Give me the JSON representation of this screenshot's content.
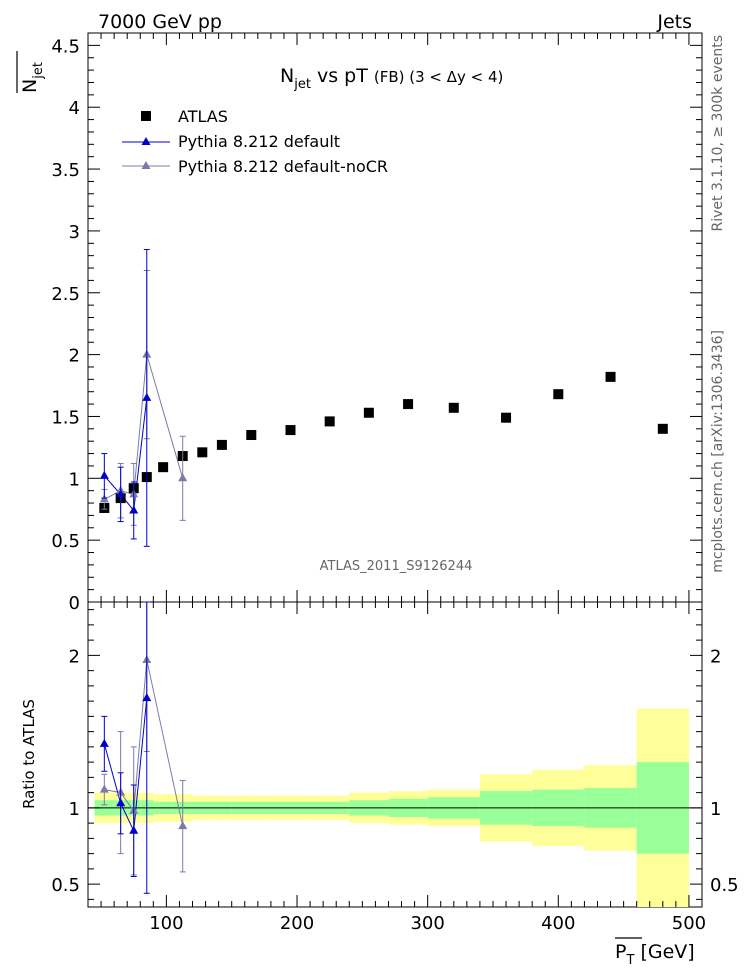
{
  "header": {
    "left": "7000 GeV pp",
    "right": "Jets"
  },
  "side_labels": {
    "rivet": "Rivet 3.1.10, ≥ 300k events",
    "mcplots": "mcplots.cern.ch [arXiv:1306.3436]"
  },
  "chart_data": {
    "type": "scatter",
    "title_main": "N",
    "title_sub": "jet",
    "title_rest": " vs pT ",
    "title_small": "(FB) (3 < Δy < 4)",
    "watermark": "ATLAS_2011_S9126244",
    "ylabel_main": "N",
    "ylabel_sub": "jet",
    "ratio_ylabel": "Ratio to ATLAS",
    "xlabel_main": "P",
    "xlabel_sub": "T",
    "xlabel_unit": " [GeV]",
    "xlim": [
      40,
      510
    ],
    "ylim": [
      0,
      4.6
    ],
    "ratio_ylim": [
      0.35,
      2.35
    ],
    "x_ticks": [
      "100",
      "200",
      "300",
      "400",
      "500"
    ],
    "y_ticks": [
      "0",
      "0.5",
      "1",
      "1.5",
      "2",
      "2.5",
      "3",
      "3.5",
      "4",
      "4.5"
    ],
    "ratio_ticks": [
      "0.5",
      "1",
      "2"
    ],
    "legend": [
      "ATLAS",
      "Pythia 8.212 default",
      "Pythia 8.212 default-noCR"
    ],
    "colors": {
      "data": "#000000",
      "default": "#0000cc",
      "nocr": "#7b7ba8",
      "band_outer": "#ffff99",
      "band_inner": "#99ff99"
    },
    "bins": [
      [
        45,
        60
      ],
      [
        60,
        70
      ],
      [
        70,
        80
      ],
      [
        80,
        90
      ],
      [
        90,
        105
      ],
      [
        105,
        120
      ],
      [
        120,
        135
      ],
      [
        135,
        150
      ],
      [
        150,
        180
      ],
      [
        180,
        210
      ],
      [
        210,
        240
      ],
      [
        240,
        270
      ],
      [
        270,
        300
      ],
      [
        300,
        340
      ],
      [
        340,
        380
      ],
      [
        380,
        420
      ],
      [
        420,
        460
      ],
      [
        460,
        500
      ]
    ],
    "series": [
      {
        "name": "ATLAS",
        "x": [
          52.5,
          65,
          75,
          85,
          97.5,
          112.5,
          127.5,
          142.5,
          165,
          195,
          225,
          255,
          285,
          320,
          360,
          400,
          440,
          480
        ],
        "y": [
          0.76,
          0.84,
          0.92,
          1.01,
          1.09,
          1.18,
          1.21,
          1.27,
          1.35,
          1.39,
          1.46,
          1.53,
          1.6,
          1.57,
          1.49,
          1.68,
          1.82,
          1.4
        ],
        "ratio_inner": [
          0.05,
          0.05,
          0.05,
          0.05,
          0.04,
          0.04,
          0.04,
          0.04,
          0.04,
          0.04,
          0.04,
          0.05,
          0.06,
          0.07,
          0.11,
          0.12,
          0.13,
          0.3
        ],
        "ratio_outer": [
          0.1,
          0.1,
          0.1,
          0.1,
          0.09,
          0.09,
          0.08,
          0.08,
          0.08,
          0.08,
          0.08,
          0.1,
          0.11,
          0.12,
          0.22,
          0.25,
          0.28,
          0.65
        ]
      },
      {
        "name": "Pythia 8.212 default",
        "x": [
          52.5,
          65,
          75,
          85
        ],
        "y": [
          1.02,
          0.87,
          0.74,
          1.65
        ],
        "yerr": [
          0.18,
          0.22,
          0.23,
          1.2
        ],
        "ratio": [
          1.42,
          1.03,
          0.85,
          1.72
        ],
        "ratio_err": [
          0.18,
          0.2,
          0.3,
          1.28
        ]
      },
      {
        "name": "Pythia 8.212 default-noCR",
        "x": [
          52.5,
          65,
          75,
          85,
          112.5
        ],
        "y": [
          0.83,
          0.9,
          0.87,
          2.0,
          1.0
        ],
        "yerr": [
          0.08,
          0.22,
          0.25,
          0.68,
          0.34
        ],
        "ratio": [
          1.12,
          1.1,
          0.98,
          1.97,
          0.88
        ],
        "ratio_err": [
          0.1,
          0.4,
          0.42,
          0.6,
          0.3
        ]
      }
    ]
  }
}
